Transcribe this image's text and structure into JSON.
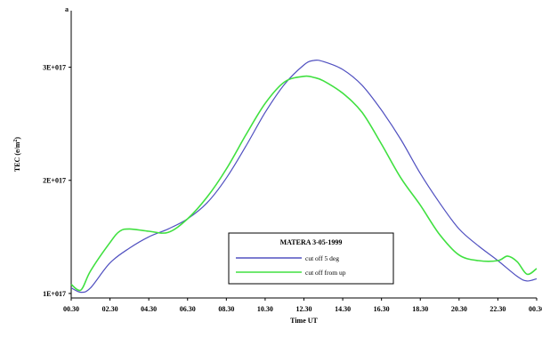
{
  "chart_data": {
    "type": "line",
    "title": "",
    "xlabel": "Time UT",
    "ylabel": "TEC (e/m",
    "ylabel_sup": "2",
    "ylabel_close": ")",
    "y_top_marker": "a",
    "x_ticks": [
      "00.30",
      "02.30",
      "04.30",
      "06.30",
      "08.30",
      "10.30",
      "12.30",
      "14.30",
      "16.30",
      "18.30",
      "20.30",
      "22.30",
      "00.30"
    ],
    "xlim": [
      0.5,
      24.5
    ],
    "y_ticks": [
      {
        "value": 1e+17,
        "label": "1E+017"
      },
      {
        "value": 2e+17,
        "label": "2E+017"
      },
      {
        "value": 3e+17,
        "label": "3E+017"
      }
    ],
    "ylim": [
      9.6e+16,
      3.5e+17
    ],
    "grid": false,
    "legend": {
      "title": "MATERA 3-05-1999",
      "placement": "bottom-center",
      "entries": [
        {
          "label": "cut off 5 deg",
          "color": "#5050c0"
        },
        {
          "label": "cut off from up",
          "color": "#40e040"
        }
      ]
    },
    "series": [
      {
        "name": "cut off 5 deg",
        "color": "#5050c0",
        "x": [
          0.5,
          1.0,
          1.5,
          2.5,
          3.5,
          4.5,
          5.5,
          6.5,
          7.5,
          8.5,
          9.5,
          10.5,
          11.5,
          12.5,
          13.0,
          13.5,
          14.5,
          15.5,
          16.5,
          17.5,
          18.5,
          19.5,
          20.5,
          21.5,
          22.5,
          23.5,
          24.0,
          24.5
        ],
        "values": [
          1.05e+17,
          1.01e+17,
          1.05e+17,
          1.27e+17,
          1.4e+17,
          1.5e+17,
          1.57e+17,
          1.66e+17,
          1.8e+17,
          2.02e+17,
          2.3e+17,
          2.6e+17,
          2.85e+17,
          3.02e+17,
          3.06e+17,
          3.05e+17,
          2.98e+17,
          2.84e+17,
          2.62e+17,
          2.36e+17,
          2.06e+17,
          1.8e+17,
          1.57e+17,
          1.42e+17,
          1.29e+17,
          1.15e+17,
          1.11e+17,
          1.13e+17
        ]
      },
      {
        "name": "cut off from up",
        "color": "#40e040",
        "x": [
          0.5,
          1.0,
          1.5,
          2.5,
          3.0,
          3.5,
          4.5,
          5.5,
          6.5,
          7.5,
          8.5,
          9.5,
          10.5,
          11.5,
          12.5,
          13.0,
          13.5,
          14.5,
          15.5,
          16.5,
          17.5,
          18.5,
          19.5,
          20.5,
          21.5,
          22.5,
          23.0,
          23.5,
          24.0,
          24.5
        ],
        "values": [
          1.08e+17,
          1.03e+17,
          1.2e+17,
          1.45e+17,
          1.55e+17,
          1.57e+17,
          1.55e+17,
          1.54e+17,
          1.66e+17,
          1.85e+17,
          2.1e+17,
          2.4e+17,
          2.68e+17,
          2.87e+17,
          2.92e+17,
          2.91e+17,
          2.88e+17,
          2.77e+17,
          2.6e+17,
          2.32e+17,
          2.02e+17,
          1.78e+17,
          1.52e+17,
          1.34e+17,
          1.29e+17,
          1.29e+17,
          1.33e+17,
          1.28e+17,
          1.17e+17,
          1.22e+17
        ]
      }
    ]
  }
}
